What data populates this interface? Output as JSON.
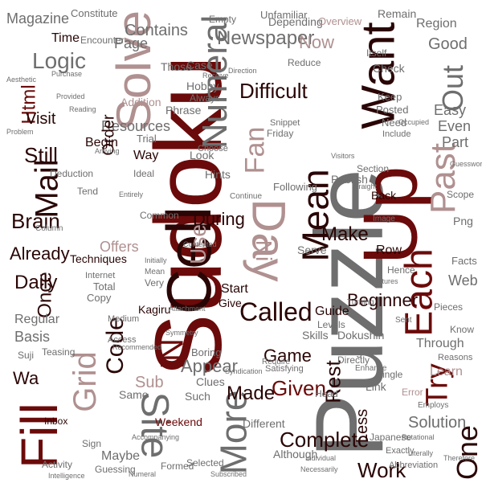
{
  "palette": {
    "maroon": "#6b0a0a",
    "rose": "#b09090",
    "gray": "#6e6e6e",
    "black": "#2a0505",
    "red": "#9a2a2a",
    "background": "#ffffff"
  },
  "words": {
    "puzzle": "Puzzle",
    "sudoku": "Sudoku",
    "up": "Up",
    "cell": "Cell",
    "fill": "Fill",
    "solve": "Solve",
    "want": "Want",
    "day": "Day",
    "mean": "Mean",
    "each": "Each",
    "more": "More",
    "site": "Site",
    "past": "Past",
    "numeral": "Numeral",
    "grid": "Grid",
    "mail": "Mail",
    "called": "Called",
    "try": "Try",
    "one": "One",
    "ni": "Ni",
    "ni2": "Ni",
    "complete": "Complete",
    "out": "Out",
    "logic": "Logic",
    "newspaper": "Newspaper",
    "fan": "Fan",
    "difficult": "Difficult",
    "html": "Html",
    "brain": "Brain",
    "still": "Still",
    "code": "Code",
    "given": "Given",
    "once": "Once",
    "daily": "Daily",
    "already": "Already",
    "beginner": "Beginner",
    "make": "Make",
    "work": "Work",
    "solution": "Solution",
    "made": "Made",
    "rest": "Rest",
    "game": "Game",
    "appear": "Appear",
    "sub": "Sub",
    "use": "Use",
    "during": "During",
    "resources": "Resources",
    "order": "Order",
    "visit": "Visit",
    "magazine": "Magazine",
    "time": "Time",
    "contains": "Contains",
    "page": "Page",
    "now": "Now",
    "good": "Good",
    "region": "Region",
    "easy": "Easy",
    "even": "Even",
    "part": "Part",
    "web": "Web",
    "through": "Through",
    "learn": "Learn",
    "wa": "Wa",
    "basis": "Basis",
    "regular": "Regular",
    "offers": "Offers",
    "techniques": "Techniques",
    "less": "Less",
    "guide": "Guide",
    "kagiru": "Kagiru",
    "dokushin": "Dokushin",
    "weekend": "Weekend",
    "different": "Different",
    "maybe": "Maybe",
    "phrase": "Phrase",
    "addition": "Addition",
    "those": "Those",
    "depending": "Depending",
    "encounter": "Encounter",
    "various": "Various",
    "empty": "Empty",
    "unfamiliar": "Unfamiliar",
    "constitute": "Constitute",
    "overview": "Overview",
    "remain": "Remain",
    "link": "Link",
    "digits": "Digits",
    "single": "Single",
    "error": "Error",
    "teasing": "Teasing",
    "inbox": "Inbox",
    "clues": "Clues",
    "boring": "Boring",
    "such": "Such",
    "although": "Although",
    "selected": "Selected",
    "formed": "Formed",
    "guessing": "Guessing",
    "activity": "Activity",
    "abbreviation": "Abbreviation",
    "skills": "Skills",
    "levels": "Levels",
    "start": "Start",
    "give": "Give",
    "copy": "Copy",
    "total": "Total",
    "internet": "Internet",
    "sign": "Sign",
    "hobby": "Hobby",
    "case": "Case",
    "always": "Always",
    "trial": "Trial",
    "ideal": "Ideal",
    "friday": "Friday",
    "way": "Way",
    "begin": "Begin",
    "look": "Look",
    "hints": "Hints",
    "choose": "Choose",
    "check": "Check",
    "keep": "Keep",
    "posted": "Posted",
    "need": "Need",
    "include": "Include",
    "snippet": "Snippet",
    "reduce": "Reduce",
    "section": "Section",
    "publish": "Publish",
    "following": "Following",
    "serve": "Serve",
    "row": "Row",
    "back": "Back",
    "hence": "Hence",
    "scope": "Scope",
    "png": "Png",
    "facts": "Facts",
    "pieces": "Pieces",
    "reasons": "Reasons",
    "know": "Know",
    "japanese": "Japanese",
    "directly": "Directly",
    "head": "Head",
    "exactly": "Exactly",
    "satisfying": "Satisfying",
    "require": "Require",
    "very": "Very",
    "common": "Common",
    "medium": "Medium",
    "suji": "Suji",
    "access": "Access",
    "aesthetic": "Aesthetic",
    "purchase": "Purchase",
    "reading": "Reading",
    "continue": "Continue",
    "literally": "Literally",
    "turning": "Turning",
    "enhance": "Enhance",
    "sent": "Sent",
    "same": "Same",
    "symmetry": "Symmetry",
    "attachment": "Attachment",
    "mean_small": "Mean",
    "initially": "Initially",
    "rotational": "Rotational",
    "employs": "Employs",
    "subscribed": "Subscribed",
    "necessarily": "Necessarily",
    "therefore": "Therefore",
    "contented": "Contented",
    "entirely": "Entirely",
    "deduction": "Deduction",
    "column": "Column",
    "intelligence": "Intelligence",
    "recommended": "Recommended",
    "provided": "Provided",
    "arriving": "Arriving",
    "visitors": "Visitors",
    "individual": "Individual",
    "beginner_small": "Beginner",
    "hobby_small": "Hobby",
    "syndication": "Syndication",
    "accompanying": "Accompanying",
    "numeral_small": "Numeral",
    "tend": "Tend",
    "features": "Features",
    "occupied": "Occupied",
    "guesswork": "Guesswork",
    "straight": "Straight",
    "since": "Since",
    "itself": "Itself",
    "difficult_small": "Difficult",
    "literally2": "Literally",
    "weekend_small": "Weekend",
    "problem": "Problem",
    "receive": "Receive",
    "direction": "Direction",
    "entirely2": "Entirely",
    "solve_small": "Solve",
    "image": "Image"
  }
}
